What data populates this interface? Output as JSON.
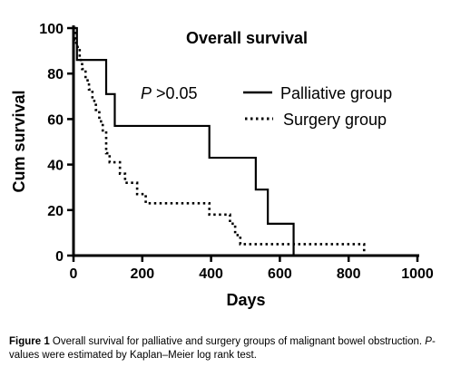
{
  "chart_data": {
    "type": "line",
    "title": "Overall survival",
    "annotation_p": "P",
    "annotation_rest": " >0.05",
    "xlabel": "Days",
    "ylabel": "Cum survival",
    "xlim": [
      0,
      1000
    ],
    "ylim": [
      0,
      100
    ],
    "xticks": [
      0,
      200,
      400,
      600,
      800,
      1000
    ],
    "yticks": [
      0,
      20,
      40,
      60,
      80,
      100
    ],
    "grid": false,
    "legend_position": "top-right",
    "series": [
      {
        "name": "Palliative group",
        "style": "solid",
        "color": "#000000",
        "x": [
          0,
          10,
          95,
          120,
          395,
          530,
          565,
          640
        ],
        "y": [
          100,
          86,
          71,
          57,
          43,
          29,
          14,
          0
        ]
      },
      {
        "name": "Surgery group",
        "style": "dotted",
        "color": "#000000",
        "x": [
          0,
          5,
          8,
          12,
          18,
          25,
          35,
          45,
          55,
          65,
          75,
          85,
          95,
          105,
          135,
          150,
          185,
          210,
          255,
          310,
          395,
          455,
          470,
          485,
          570,
          835,
          845
        ],
        "y": [
          100,
          95,
          93,
          91,
          86,
          82,
          77,
          73,
          68,
          64,
          59,
          55,
          45,
          41,
          36,
          32,
          27,
          23,
          23,
          23,
          18,
          14,
          9,
          5,
          5,
          5,
          0
        ]
      }
    ]
  },
  "caption": {
    "label": "Figure 1",
    "text1": " Overall survival for palliative and surgery groups of malignant bowel obstruction. ",
    "p_italic": "P",
    "text2": "-values were estimated by Kaplan–Meier log rank test."
  }
}
